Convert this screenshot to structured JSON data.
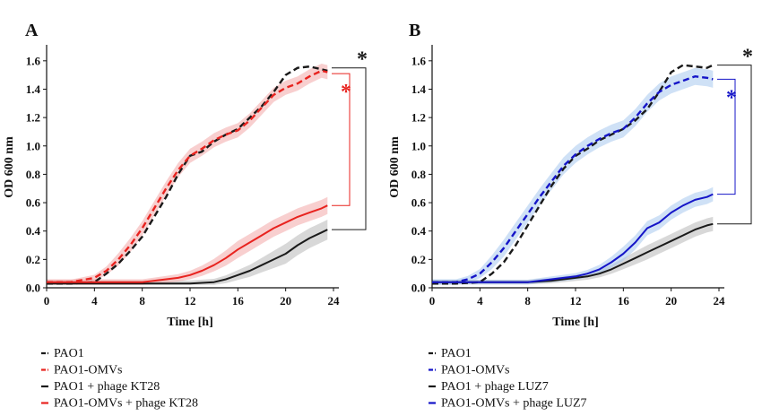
{
  "colors": {
    "black": "#1a1a1a",
    "red": "#e8231f",
    "blue": "#1515c8",
    "red_band": "#f2a8a8",
    "blue_band": "#a8c8ee",
    "grey_band": "#b8b8b8"
  },
  "chart_data": [
    {
      "panel": "A",
      "type": "line",
      "xlabel": "Time [h]",
      "ylabel": "OD 600 nm",
      "xlim": [
        0,
        24
      ],
      "ylim": [
        0,
        1.7
      ],
      "xticks": [
        "0",
        "4",
        "8",
        "12",
        "16",
        "20",
        "24"
      ],
      "yticks": [
        "0.0",
        "0.2",
        "0.4",
        "0.6",
        "0.8",
        "1.0",
        "1.2",
        "1.4",
        "1.6"
      ],
      "legend_position": "bottom-left, below chart",
      "series": [
        {
          "name": "PAO1",
          "color": "black",
          "style": "dashed",
          "x": [
            0,
            2,
            4,
            5,
            6,
            7,
            8,
            9,
            10,
            11,
            12,
            13,
            14,
            15,
            16,
            17,
            18,
            19,
            20,
            21,
            22,
            23,
            23.5
          ],
          "y": [
            0.03,
            0.03,
            0.04,
            0.1,
            0.17,
            0.26,
            0.36,
            0.5,
            0.64,
            0.8,
            0.93,
            0.96,
            1.03,
            1.08,
            1.12,
            1.2,
            1.28,
            1.38,
            1.5,
            1.55,
            1.56,
            1.54,
            1.53
          ]
        },
        {
          "name": "PAO1-OMVs",
          "color": "red",
          "style": "dashed",
          "x": [
            0,
            2,
            4,
            5,
            6,
            7,
            8,
            9,
            10,
            11,
            12,
            13,
            14,
            15,
            16,
            17,
            18,
            19,
            20,
            21,
            22,
            23,
            23.5
          ],
          "y": [
            0.04,
            0.04,
            0.07,
            0.12,
            0.2,
            0.3,
            0.42,
            0.56,
            0.7,
            0.83,
            0.93,
            0.98,
            1.04,
            1.08,
            1.11,
            1.18,
            1.27,
            1.36,
            1.41,
            1.44,
            1.49,
            1.53,
            1.52
          ],
          "band": 0.05
        },
        {
          "name": "PAO1 + phage KT28",
          "color": "black",
          "style": "solid",
          "x": [
            0,
            4,
            8,
            12,
            14,
            15,
            16,
            17,
            18,
            19,
            20,
            21,
            22,
            23,
            23.5
          ],
          "y": [
            0.03,
            0.03,
            0.03,
            0.03,
            0.04,
            0.06,
            0.09,
            0.12,
            0.16,
            0.2,
            0.24,
            0.3,
            0.35,
            0.39,
            0.41
          ],
          "band": 0.07
        },
        {
          "name": "PAO1-OMVs + phage KT28",
          "color": "red",
          "style": "solid",
          "x": [
            0,
            4,
            8,
            10,
            11,
            12,
            13,
            14,
            15,
            16,
            17,
            18,
            19,
            20,
            21,
            22,
            23,
            23.5
          ],
          "y": [
            0.04,
            0.04,
            0.04,
            0.06,
            0.07,
            0.09,
            0.12,
            0.16,
            0.21,
            0.27,
            0.32,
            0.37,
            0.42,
            0.46,
            0.5,
            0.53,
            0.56,
            0.58
          ],
          "band": 0.06
        }
      ],
      "significance": [
        {
          "label": "*",
          "color": "black",
          "from_y": 1.55,
          "to_y": 0.41
        },
        {
          "label": "*",
          "color": "red",
          "from_y": 1.51,
          "to_y": 0.58
        }
      ]
    },
    {
      "panel": "B",
      "type": "line",
      "xlabel": "Time [h]",
      "ylabel": "OD 600 nm",
      "xlim": [
        0,
        24
      ],
      "ylim": [
        0,
        1.7
      ],
      "xticks": [
        "0",
        "4",
        "8",
        "12",
        "16",
        "20",
        "24"
      ],
      "yticks": [
        "0.0",
        "0.2",
        "0.4",
        "0.6",
        "0.8",
        "1.0",
        "1.2",
        "1.4",
        "1.6"
      ],
      "legend_position": "bottom-left, below chart",
      "series": [
        {
          "name": "PAO1",
          "color": "black",
          "style": "dashed",
          "x": [
            0,
            2,
            4,
            5,
            6,
            7,
            8,
            9,
            10,
            11,
            12,
            13,
            14,
            15,
            16,
            17,
            18,
            19,
            20,
            21,
            22,
            23,
            23.5
          ],
          "y": [
            0.03,
            0.03,
            0.04,
            0.1,
            0.18,
            0.3,
            0.44,
            0.58,
            0.72,
            0.84,
            0.93,
            0.98,
            1.04,
            1.08,
            1.12,
            1.18,
            1.26,
            1.38,
            1.52,
            1.57,
            1.56,
            1.55,
            1.57
          ]
        },
        {
          "name": "PAO1-OMVs",
          "color": "blue",
          "style": "dashed",
          "x": [
            0,
            2,
            3,
            4,
            5,
            6,
            7,
            8,
            9,
            10,
            11,
            12,
            13,
            14,
            15,
            16,
            17,
            18,
            19,
            20,
            21,
            22,
            23,
            23.5
          ],
          "y": [
            0.04,
            0.04,
            0.06,
            0.1,
            0.18,
            0.28,
            0.4,
            0.52,
            0.64,
            0.75,
            0.86,
            0.94,
            1.0,
            1.05,
            1.09,
            1.12,
            1.2,
            1.3,
            1.38,
            1.43,
            1.46,
            1.49,
            1.48,
            1.47
          ],
          "band": 0.06
        },
        {
          "name": "PAO1 + phage LUZ7",
          "color": "black",
          "style": "solid",
          "x": [
            0,
            4,
            8,
            10,
            11,
            12,
            13,
            14,
            15,
            16,
            17,
            18,
            19,
            20,
            21,
            22,
            23,
            23.5
          ],
          "y": [
            0.04,
            0.04,
            0.04,
            0.05,
            0.06,
            0.07,
            0.08,
            0.1,
            0.13,
            0.17,
            0.21,
            0.25,
            0.29,
            0.33,
            0.37,
            0.41,
            0.44,
            0.45
          ],
          "band": 0.05
        },
        {
          "name": "PAO1-OMVs + phage LUZ7",
          "color": "blue",
          "style": "solid",
          "x": [
            0,
            4,
            8,
            10,
            11,
            12,
            13,
            14,
            15,
            16,
            17,
            18,
            19,
            20,
            21,
            22,
            23,
            23.5
          ],
          "y": [
            0.04,
            0.04,
            0.04,
            0.06,
            0.07,
            0.08,
            0.1,
            0.13,
            0.18,
            0.24,
            0.32,
            0.42,
            0.46,
            0.53,
            0.58,
            0.62,
            0.64,
            0.66
          ],
          "band": 0.05
        }
      ],
      "significance": [
        {
          "label": "*",
          "color": "black",
          "from_y": 1.57,
          "to_y": 0.45
        },
        {
          "label": "*",
          "color": "blue",
          "from_y": 1.47,
          "to_y": 0.66
        }
      ]
    }
  ]
}
